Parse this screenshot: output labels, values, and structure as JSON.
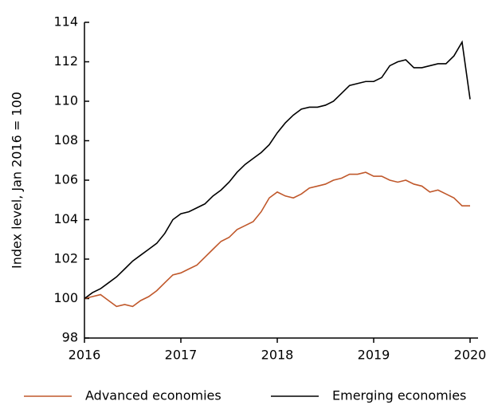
{
  "chart_data": {
    "type": "line",
    "y_label": "Index level, Jan 2016 = 100",
    "x": [
      2016,
      2016.083,
      2016.167,
      2016.25,
      2016.333,
      2016.417,
      2016.5,
      2016.583,
      2016.667,
      2016.75,
      2016.833,
      2016.917,
      2017,
      2017.083,
      2017.167,
      2017.25,
      2017.333,
      2017.417,
      2017.5,
      2017.583,
      2017.667,
      2017.75,
      2017.833,
      2017.917,
      2018,
      2018.083,
      2018.167,
      2018.25,
      2018.333,
      2018.417,
      2018.5,
      2018.583,
      2018.667,
      2018.75,
      2018.833,
      2018.917,
      2019,
      2019.083,
      2019.167,
      2019.25,
      2019.333,
      2019.417,
      2019.5,
      2019.583,
      2019.667,
      2019.75,
      2019.833,
      2019.917,
      2020
    ],
    "series": [
      {
        "name": "Advanced economies",
        "color": "#c0582b",
        "values": [
          100,
          100.1,
          100.2,
          99.9,
          99.6,
          99.7,
          99.6,
          99.9,
          100.1,
          100.4,
          100.8,
          101.2,
          101.3,
          101.5,
          101.7,
          102.1,
          102.5,
          102.9,
          103.1,
          103.5,
          103.7,
          103.9,
          104.4,
          105.1,
          105.4,
          105.2,
          105.1,
          105.3,
          105.6,
          105.7,
          105.8,
          106.0,
          106.1,
          106.3,
          106.3,
          106.4,
          106.2,
          106.2,
          106.0,
          105.9,
          106.0,
          105.8,
          105.7,
          105.4,
          105.5,
          105.3,
          105.1,
          104.7,
          104.7
        ]
      },
      {
        "name": "Emerging economies",
        "color": "#000000",
        "values": [
          100,
          100.3,
          100.5,
          100.8,
          101.1,
          101.5,
          101.9,
          102.2,
          102.5,
          102.8,
          103.3,
          104.0,
          104.3,
          104.4,
          104.6,
          104.8,
          105.2,
          105.5,
          105.9,
          106.4,
          106.8,
          107.1,
          107.4,
          107.8,
          108.4,
          108.9,
          109.3,
          109.6,
          109.7,
          109.7,
          109.8,
          110.0,
          110.4,
          110.8,
          110.9,
          111.0,
          111.0,
          111.2,
          111.8,
          112.0,
          112.1,
          111.7,
          111.7,
          111.8,
          111.9,
          111.9,
          112.3,
          113.0,
          110.1
        ]
      }
    ],
    "xlim": [
      2016,
      2020
    ],
    "xticks": [
      2016,
      2017,
      2018,
      2019,
      2020
    ],
    "ylim": [
      98,
      114
    ],
    "yticks": [
      98,
      100,
      102,
      104,
      106,
      108,
      110,
      112,
      114
    ],
    "grid": false,
    "legend": "bottom"
  }
}
